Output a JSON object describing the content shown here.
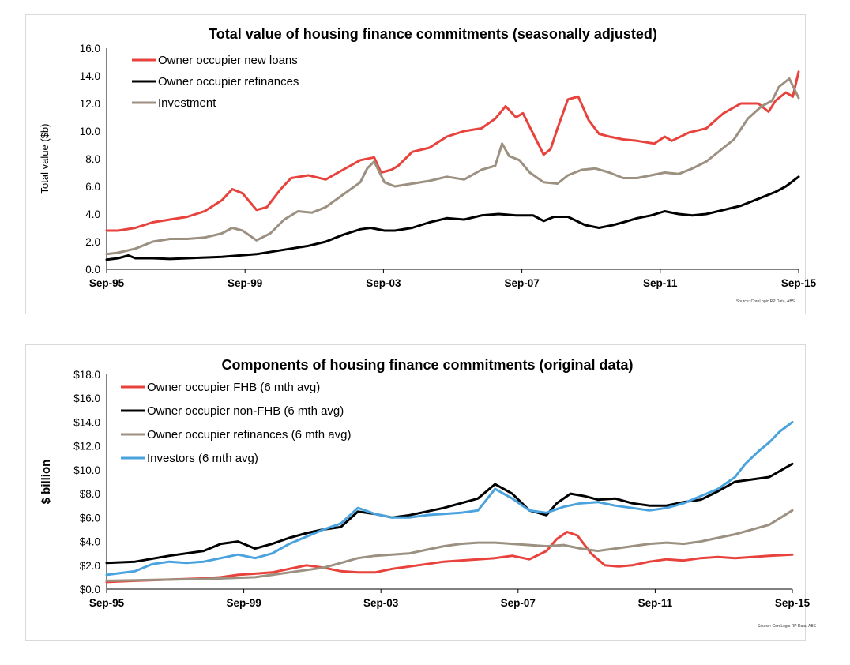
{
  "chart_data": [
    {
      "type": "line",
      "title": "Total value of housing finance commitments (seasonally adjusted)",
      "ylabel": "Total value ($b)",
      "xlabel": "",
      "ylim": [
        0,
        16
      ],
      "yticks": [
        "0.0",
        "2.0",
        "4.0",
        "6.0",
        "8.0",
        "10.0",
        "12.0",
        "14.0",
        "16.0"
      ],
      "xticks": [
        "Sep-95",
        "Sep-99",
        "Sep-03",
        "Sep-07",
        "Sep-11",
        "Sep-15"
      ],
      "legend_position": "top-left",
      "source": "Source: CoreLogic RP Data, ABS",
      "series": [
        {
          "name": "Owner occupier new loans",
          "color": "#e8423c",
          "width": 3,
          "x": [
            1995.67,
            1996.0,
            1996.5,
            1997.0,
            1997.5,
            1998.0,
            1998.5,
            1999.0,
            1999.3,
            1999.6,
            2000.0,
            2000.3,
            2000.7,
            2001.0,
            2001.5,
            2002.0,
            2002.5,
            2003.0,
            2003.4,
            2003.6,
            2003.9,
            2004.1,
            2004.5,
            2005.0,
            2005.5,
            2006.0,
            2006.5,
            2006.9,
            2007.2,
            2007.5,
            2007.7,
            2007.9,
            2008.3,
            2008.5,
            2008.7,
            2009.0,
            2009.3,
            2009.6,
            2009.9,
            2010.2,
            2010.6,
            2011.0,
            2011.5,
            2011.8,
            2012.0,
            2012.5,
            2013.0,
            2013.5,
            2014.0,
            2014.5,
            2014.8,
            2015.0,
            2015.3,
            2015.5,
            2015.67
          ],
          "y": [
            2.8,
            2.8,
            3.0,
            3.4,
            3.6,
            3.8,
            4.2,
            5.0,
            5.8,
            5.5,
            4.3,
            4.5,
            5.8,
            6.6,
            6.8,
            6.5,
            7.2,
            7.9,
            8.1,
            7.0,
            7.2,
            7.5,
            8.5,
            8.8,
            9.6,
            10.0,
            10.2,
            10.9,
            11.8,
            11.0,
            11.3,
            10.3,
            8.3,
            8.7,
            10.2,
            12.3,
            12.5,
            10.8,
            9.8,
            9.6,
            9.4,
            9.3,
            9.1,
            9.6,
            9.3,
            9.9,
            10.2,
            11.3,
            12.0,
            12.0,
            11.4,
            12.2,
            12.8,
            12.5,
            14.3
          ]
        },
        {
          "name": "Owner occupier refinances",
          "color": "#000000",
          "width": 3,
          "x": [
            1995.67,
            1996.0,
            1996.3,
            1996.5,
            1997.0,
            1997.5,
            1998.0,
            1998.5,
            1999.0,
            1999.5,
            2000.0,
            2000.5,
            2001.0,
            2001.5,
            2002.0,
            2002.5,
            2003.0,
            2003.3,
            2003.7,
            2004.0,
            2004.5,
            2005.0,
            2005.5,
            2006.0,
            2006.5,
            2007.0,
            2007.5,
            2008.0,
            2008.3,
            2008.6,
            2009.0,
            2009.5,
            2009.9,
            2010.3,
            2010.6,
            2011.0,
            2011.4,
            2011.8,
            2012.2,
            2012.6,
            2013.0,
            2013.5,
            2014.0,
            2014.5,
            2015.0,
            2015.3,
            2015.67
          ],
          "y": [
            0.7,
            0.8,
            1.0,
            0.8,
            0.8,
            0.75,
            0.8,
            0.85,
            0.9,
            1.0,
            1.1,
            1.3,
            1.5,
            1.7,
            2.0,
            2.5,
            2.9,
            3.0,
            2.8,
            2.8,
            3.0,
            3.4,
            3.7,
            3.6,
            3.9,
            4.0,
            3.9,
            3.9,
            3.5,
            3.8,
            3.8,
            3.2,
            3.0,
            3.2,
            3.4,
            3.7,
            3.9,
            4.2,
            4.0,
            3.9,
            4.0,
            4.3,
            4.6,
            5.1,
            5.6,
            6.0,
            6.7
          ]
        },
        {
          "name": "Investment",
          "color": "#9c9081",
          "width": 3,
          "x": [
            1995.67,
            1996.0,
            1996.5,
            1997.0,
            1997.5,
            1998.0,
            1998.5,
            1999.0,
            1999.3,
            1999.6,
            2000.0,
            2000.4,
            2000.8,
            2001.2,
            2001.6,
            2002.0,
            2002.5,
            2003.0,
            2003.2,
            2003.4,
            2003.7,
            2004.0,
            2004.5,
            2005.0,
            2005.5,
            2006.0,
            2006.5,
            2006.9,
            2007.1,
            2007.3,
            2007.6,
            2007.9,
            2008.3,
            2008.7,
            2009.0,
            2009.4,
            2009.8,
            2010.2,
            2010.6,
            2011.0,
            2011.4,
            2011.8,
            2012.2,
            2012.6,
            2013.0,
            2013.4,
            2013.8,
            2014.2,
            2014.6,
            2014.9,
            2015.1,
            2015.4,
            2015.67
          ],
          "y": [
            1.1,
            1.2,
            1.5,
            2.0,
            2.2,
            2.2,
            2.3,
            2.6,
            3.0,
            2.8,
            2.1,
            2.6,
            3.6,
            4.2,
            4.1,
            4.5,
            5.4,
            6.3,
            7.3,
            7.8,
            6.3,
            6.0,
            6.2,
            6.4,
            6.7,
            6.5,
            7.2,
            7.5,
            9.1,
            8.2,
            7.9,
            7.0,
            6.3,
            6.2,
            6.8,
            7.2,
            7.3,
            7.0,
            6.6,
            6.6,
            6.8,
            7.0,
            6.9,
            7.3,
            7.8,
            8.6,
            9.4,
            10.9,
            11.8,
            12.2,
            13.2,
            13.8,
            12.4
          ]
        }
      ]
    },
    {
      "type": "line",
      "title": "Components of housing finance commitments (original data)",
      "ylabel": "$ billion",
      "xlabel": "",
      "ylim": [
        0,
        18
      ],
      "yticks": [
        "$0.0",
        "$2.0",
        "$4.0",
        "$6.0",
        "$8.0",
        "$10.0",
        "$12.0",
        "$14.0",
        "$16.0",
        "$18.0"
      ],
      "xticks": [
        "Sep-95",
        "Sep-99",
        "Sep-03",
        "Sep-07",
        "Sep-11",
        "Sep-15"
      ],
      "legend_position": "top-left",
      "source": "Source: CoreLogic RP Data, ABS",
      "series": [
        {
          "name": "Owner occupier FHB (6 mth avg)",
          "color": "#e8423c",
          "width": 3,
          "x": [
            1995.67,
            1996.5,
            1997.5,
            1998.5,
            1999.0,
            1999.5,
            2000.0,
            2000.5,
            2001.0,
            2001.5,
            2002.0,
            2002.5,
            2003.0,
            2003.5,
            2004.0,
            2004.5,
            2005.0,
            2005.5,
            2006.0,
            2006.5,
            2007.0,
            2007.5,
            2008.0,
            2008.5,
            2008.8,
            2009.1,
            2009.4,
            2009.8,
            2010.2,
            2010.6,
            2011.0,
            2011.5,
            2012.0,
            2012.5,
            2013.0,
            2013.5,
            2014.0,
            2014.5,
            2015.0,
            2015.67
          ],
          "y": [
            0.6,
            0.7,
            0.8,
            0.9,
            1.0,
            1.2,
            1.3,
            1.4,
            1.7,
            2.0,
            1.8,
            1.5,
            1.4,
            1.4,
            1.7,
            1.9,
            2.1,
            2.3,
            2.4,
            2.5,
            2.6,
            2.8,
            2.5,
            3.2,
            4.2,
            4.8,
            4.5,
            3.0,
            2.0,
            1.9,
            2.0,
            2.3,
            2.5,
            2.4,
            2.6,
            2.7,
            2.6,
            2.7,
            2.8,
            2.9
          ]
        },
        {
          "name": "Owner occupier non-FHB (6 mth avg)",
          "color": "#000000",
          "width": 3,
          "x": [
            1995.67,
            1996.5,
            1997.5,
            1998.5,
            1999.0,
            1999.5,
            2000.0,
            2000.5,
            2001.0,
            2001.5,
            2002.0,
            2002.5,
            2003.0,
            2003.5,
            2004.0,
            2004.5,
            2005.0,
            2005.5,
            2006.0,
            2006.5,
            2007.0,
            2007.5,
            2008.0,
            2008.5,
            2008.8,
            2009.2,
            2009.6,
            2010.0,
            2010.5,
            2011.0,
            2011.5,
            2012.0,
            2012.5,
            2013.0,
            2013.5,
            2014.0,
            2014.5,
            2015.0,
            2015.67
          ],
          "y": [
            2.2,
            2.3,
            2.8,
            3.2,
            3.8,
            4.0,
            3.4,
            3.8,
            4.3,
            4.7,
            5.0,
            5.2,
            6.5,
            6.3,
            6.0,
            6.2,
            6.5,
            6.8,
            7.2,
            7.6,
            8.8,
            8.0,
            6.6,
            6.2,
            7.2,
            8.0,
            7.8,
            7.5,
            7.6,
            7.2,
            7.0,
            7.0,
            7.3,
            7.5,
            8.2,
            9.0,
            9.2,
            9.4,
            10.5
          ]
        },
        {
          "name": "Owner occupier refinances (6 mth avg)",
          "color": "#9c9081",
          "width": 3,
          "x": [
            1995.67,
            1996.5,
            1997.5,
            1998.5,
            1999.5,
            2000.0,
            2000.5,
            2001.0,
            2001.5,
            2002.0,
            2002.5,
            2003.0,
            2003.5,
            2004.0,
            2004.5,
            2005.0,
            2005.5,
            2006.0,
            2006.5,
            2007.0,
            2007.5,
            2008.0,
            2008.5,
            2009.0,
            2009.5,
            2010.0,
            2010.5,
            2011.0,
            2011.5,
            2012.0,
            2012.5,
            2013.0,
            2013.5,
            2014.0,
            2014.5,
            2015.0,
            2015.67
          ],
          "y": [
            0.7,
            0.75,
            0.8,
            0.85,
            0.95,
            1.0,
            1.2,
            1.4,
            1.6,
            1.8,
            2.2,
            2.6,
            2.8,
            2.9,
            3.0,
            3.3,
            3.6,
            3.8,
            3.9,
            3.9,
            3.8,
            3.7,
            3.6,
            3.7,
            3.4,
            3.2,
            3.4,
            3.6,
            3.8,
            3.9,
            3.8,
            4.0,
            4.3,
            4.6,
            5.0,
            5.4,
            6.6
          ]
        },
        {
          "name": "Investors (6 mth avg)",
          "color": "#4aa3df",
          "width": 3,
          "x": [
            1995.67,
            1996.5,
            1997.0,
            1997.5,
            1998.0,
            1998.5,
            1999.0,
            1999.5,
            2000.0,
            2000.5,
            2001.0,
            2001.5,
            2002.0,
            2002.5,
            2003.0,
            2003.5,
            2004.0,
            2004.5,
            2005.0,
            2005.5,
            2006.0,
            2006.5,
            2007.0,
            2007.5,
            2008.0,
            2008.5,
            2009.0,
            2009.5,
            2010.0,
            2010.5,
            2011.0,
            2011.5,
            2012.0,
            2012.5,
            2013.0,
            2013.5,
            2014.0,
            2014.3,
            2014.7,
            2015.0,
            2015.3,
            2015.67
          ],
          "y": [
            1.2,
            1.5,
            2.1,
            2.3,
            2.2,
            2.3,
            2.6,
            2.9,
            2.6,
            3.0,
            3.8,
            4.4,
            5.0,
            5.5,
            6.8,
            6.3,
            6.0,
            6.0,
            6.2,
            6.3,
            6.4,
            6.6,
            8.4,
            7.6,
            6.6,
            6.4,
            6.9,
            7.2,
            7.3,
            7.0,
            6.8,
            6.6,
            6.8,
            7.2,
            7.8,
            8.4,
            9.4,
            10.5,
            11.6,
            12.3,
            13.2,
            14.0
          ]
        }
      ]
    }
  ]
}
